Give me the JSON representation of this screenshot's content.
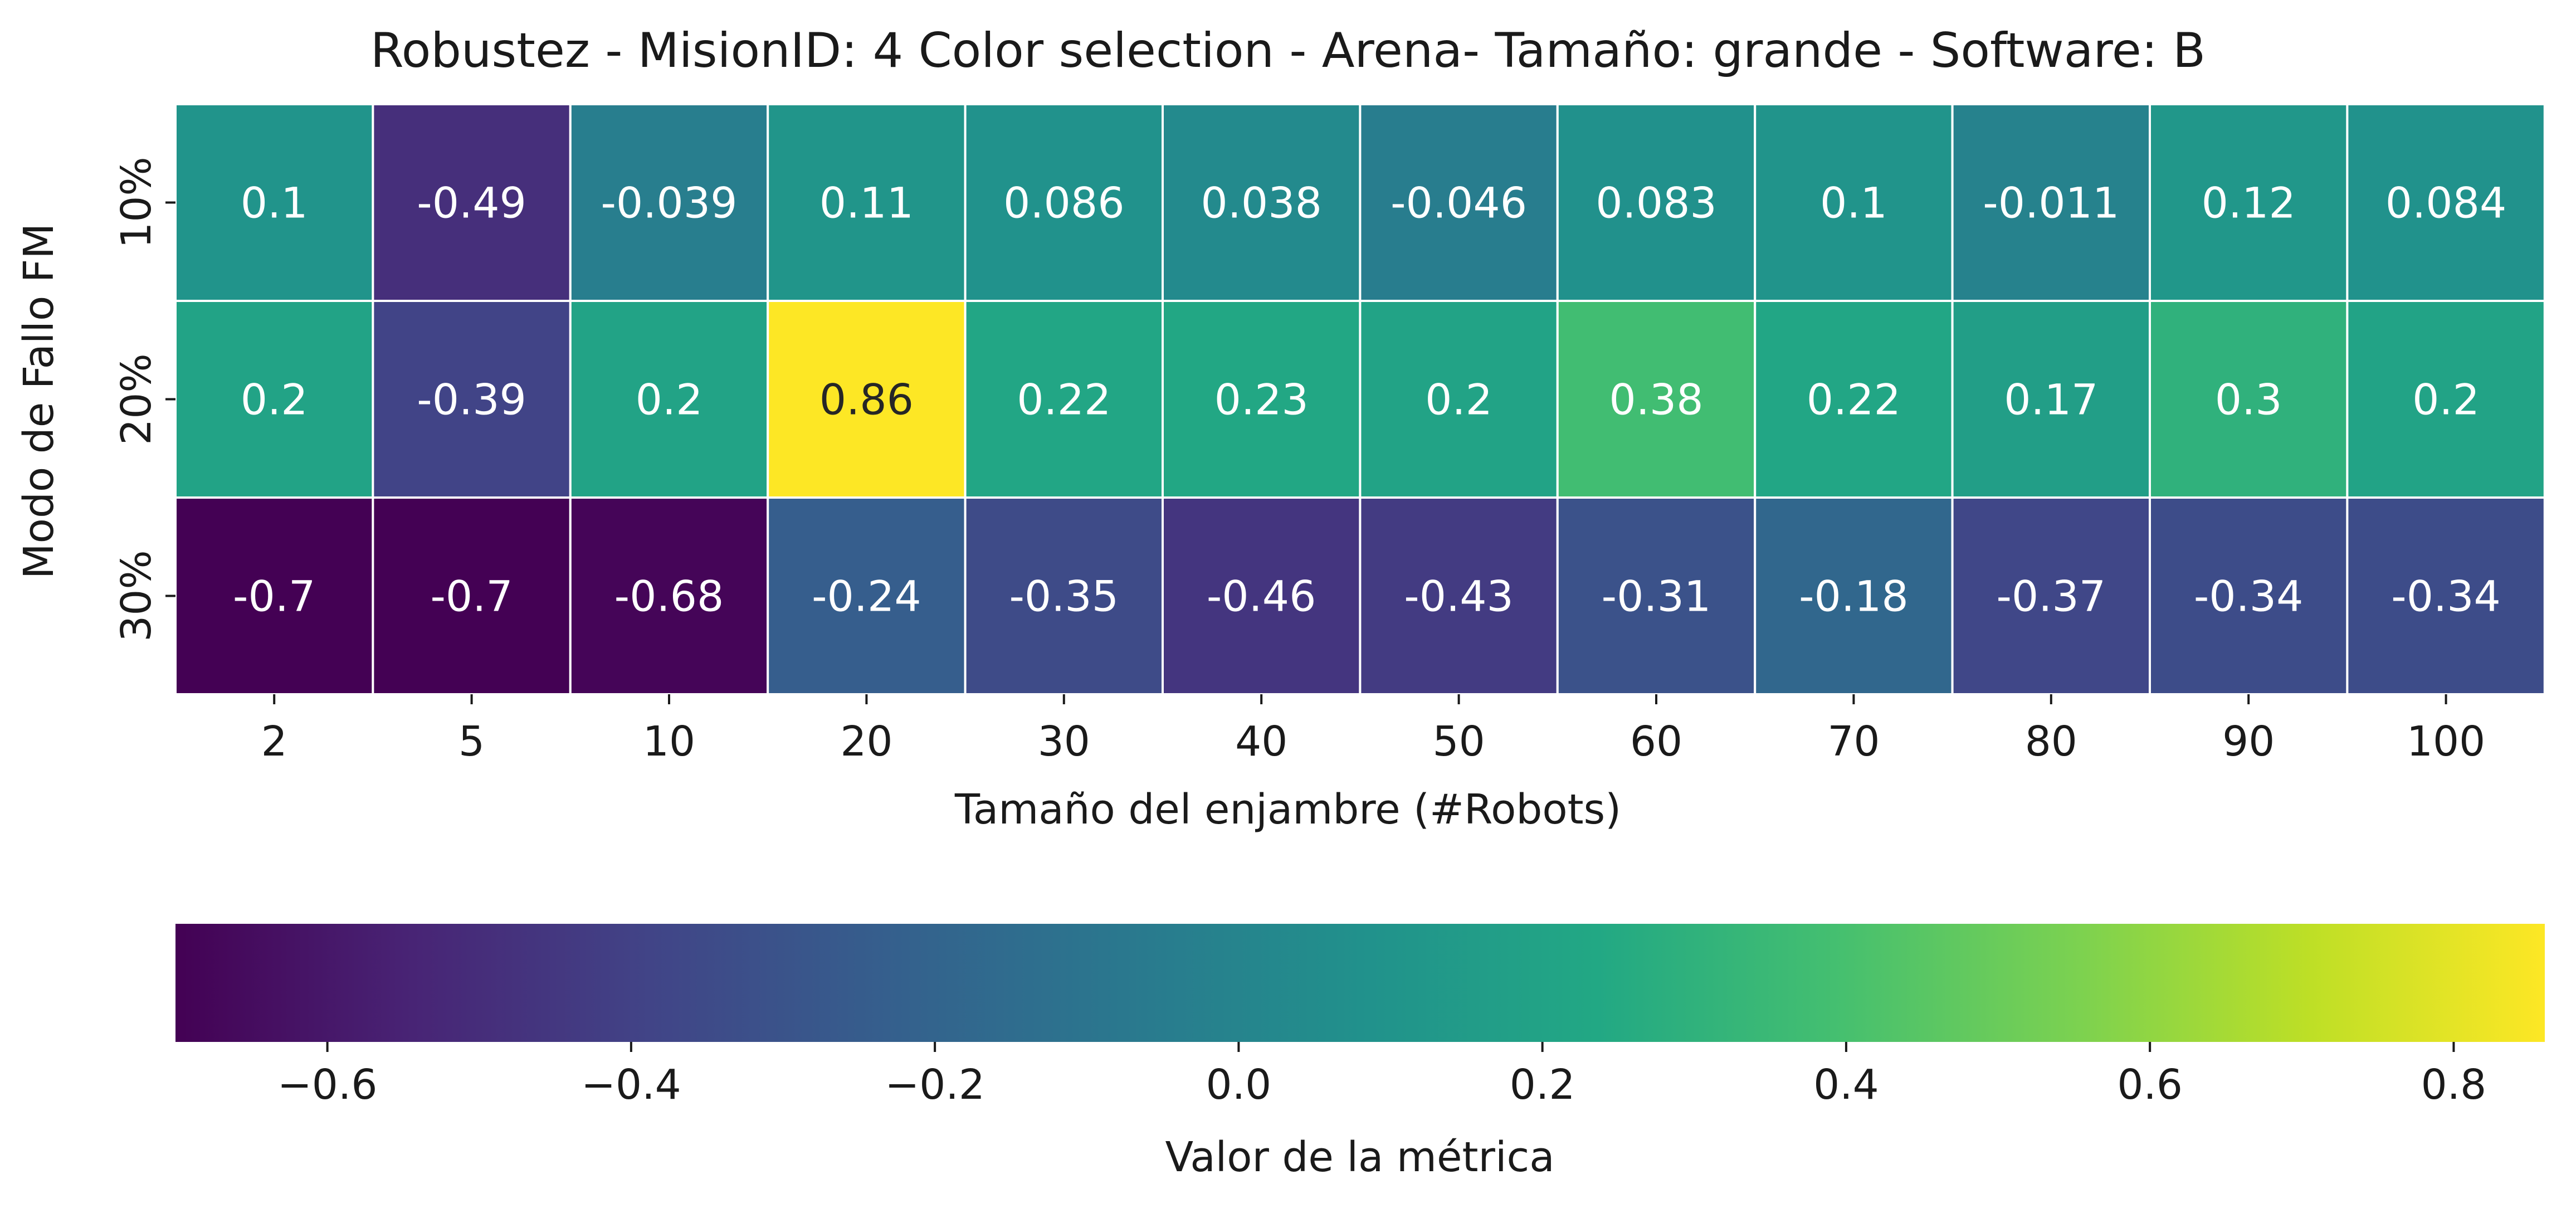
{
  "chart_data": {
    "type": "heatmap",
    "title": "Robustez - MisionID: 4 Color selection - Arena- Tamaño: grande - Software: B",
    "xlabel": "Tamaño del enjambre (#Robots)",
    "ylabel": "Modo de Fallo FM",
    "x_categories": [
      "2",
      "5",
      "10",
      "20",
      "30",
      "40",
      "50",
      "60",
      "70",
      "80",
      "90",
      "100"
    ],
    "y_categories": [
      "10%",
      "20%",
      "30%"
    ],
    "values": [
      [
        0.1,
        -0.49,
        -0.039,
        0.11,
        0.086,
        0.038,
        -0.046,
        0.083,
        0.1,
        -0.011,
        0.12,
        0.084
      ],
      [
        0.2,
        -0.39,
        0.2,
        0.86,
        0.22,
        0.23,
        0.2,
        0.38,
        0.22,
        0.17,
        0.3,
        0.2
      ],
      [
        -0.7,
        -0.7,
        -0.68,
        -0.24,
        -0.35,
        -0.46,
        -0.43,
        -0.31,
        -0.18,
        -0.37,
        -0.34,
        -0.34
      ]
    ],
    "cell_labels": [
      [
        "0.1",
        "-0.49",
        "-0.039",
        "0.11",
        "0.086",
        "0.038",
        "-0.046",
        "0.083",
        "0.1",
        "-0.011",
        "0.12",
        "0.084"
      ],
      [
        "0.2",
        "-0.39",
        "0.2",
        "0.86",
        "0.22",
        "0.23",
        "0.2",
        "0.38",
        "0.22",
        "0.17",
        "0.3",
        "0.2"
      ],
      [
        "-0.7",
        "-0.7",
        "-0.68",
        "-0.24",
        "-0.35",
        "-0.46",
        "-0.43",
        "-0.31",
        "-0.18",
        "-0.37",
        "-0.34",
        "-0.34"
      ]
    ],
    "colormap": "viridis",
    "color_range": [
      -0.7,
      0.86
    ],
    "colorbar": {
      "label": "Valor de la métrica",
      "orientation": "horizontal",
      "ticks": [
        -0.6,
        -0.4,
        -0.2,
        0.0,
        0.2,
        0.4,
        0.6,
        0.8
      ],
      "tick_labels": [
        "−0.6",
        "−0.4",
        "−0.2",
        "0.0",
        "0.2",
        "0.4",
        "0.6",
        "0.8"
      ]
    },
    "annotation_color": "#ffffff",
    "dark_annotation_color": "#262626",
    "grid_color": "#ffffff"
  }
}
